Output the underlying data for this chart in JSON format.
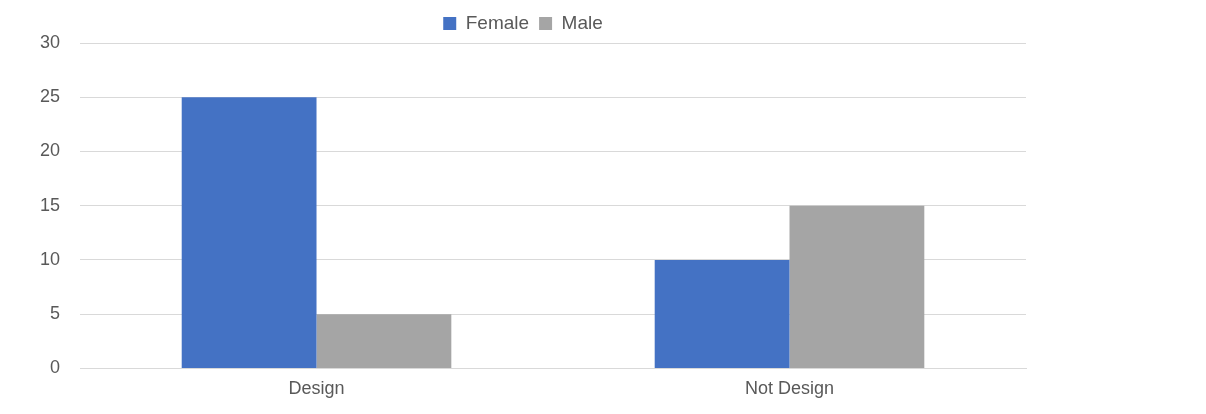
{
  "chart_data": {
    "type": "bar",
    "categories": [
      "Design",
      "Not Design"
    ],
    "series": [
      {
        "name": "Female",
        "color": "#4472c4",
        "values": [
          25,
          10
        ]
      },
      {
        "name": "Male",
        "color": "#a5a5a5",
        "values": [
          5,
          15
        ]
      }
    ],
    "ylim": [
      0,
      30
    ],
    "yticks": [
      0,
      5,
      10,
      15,
      20,
      25,
      30
    ],
    "grid": "y",
    "legend": "top"
  }
}
